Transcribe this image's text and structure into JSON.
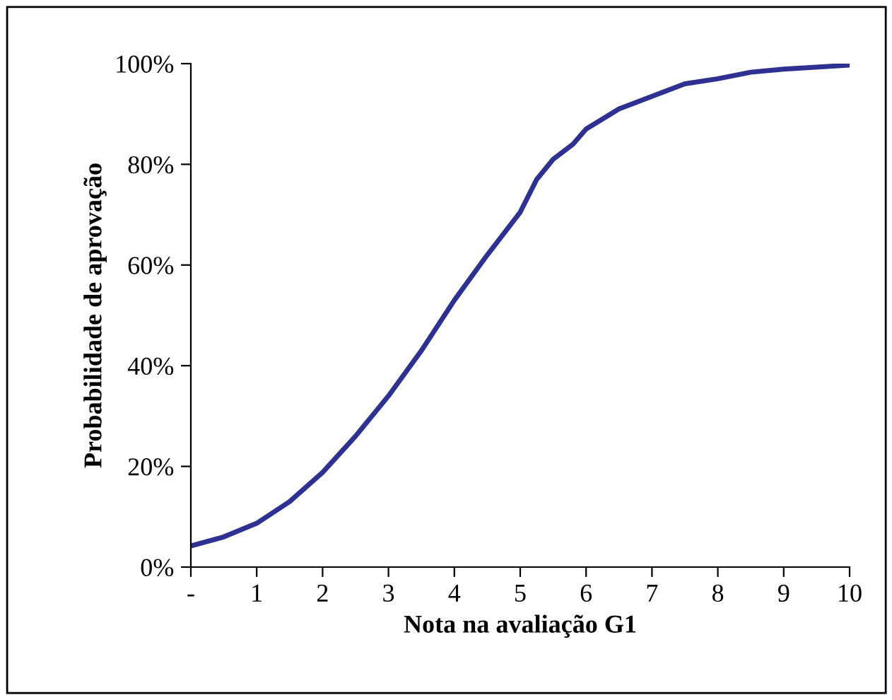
{
  "chart_data": {
    "type": "line",
    "xlabel": "Nota na avaliação G1",
    "ylabel": "Probabilidade de aprovação",
    "x": [
      0,
      0.5,
      1,
      1.5,
      2,
      2.5,
      3,
      3.5,
      4,
      4.5,
      5,
      5.25,
      5.5,
      5.8,
      6,
      6.5,
      7,
      7.5,
      8,
      8.5,
      9,
      10
    ],
    "series": [
      {
        "color": "#2e3192",
        "values": [
          4.2,
          6,
          8.7,
          13,
          18.8,
          26,
          34,
          43,
          53,
          62,
          70.5,
          77,
          81,
          84,
          87,
          91,
          93.5,
          96,
          97,
          98.3,
          98.9,
          99.7
        ]
      }
    ],
    "xlim": [
      0,
      10
    ],
    "xticks": [
      {
        "value": 0,
        "label": "-"
      },
      1,
      2,
      3,
      4,
      5,
      6,
      7,
      8,
      9,
      10
    ],
    "ylim": [
      0,
      100
    ],
    "yticks": [
      {
        "value": 0,
        "label": "0%"
      },
      {
        "value": 20,
        "label": "20%"
      },
      {
        "value": 40,
        "label": "40%"
      },
      {
        "value": 60,
        "label": "60%"
      },
      {
        "value": 80,
        "label": "80%"
      },
      {
        "value": 100,
        "label": "100%"
      }
    ],
    "grid": false,
    "legend": false,
    "marker": "none",
    "line_style": "solid"
  }
}
